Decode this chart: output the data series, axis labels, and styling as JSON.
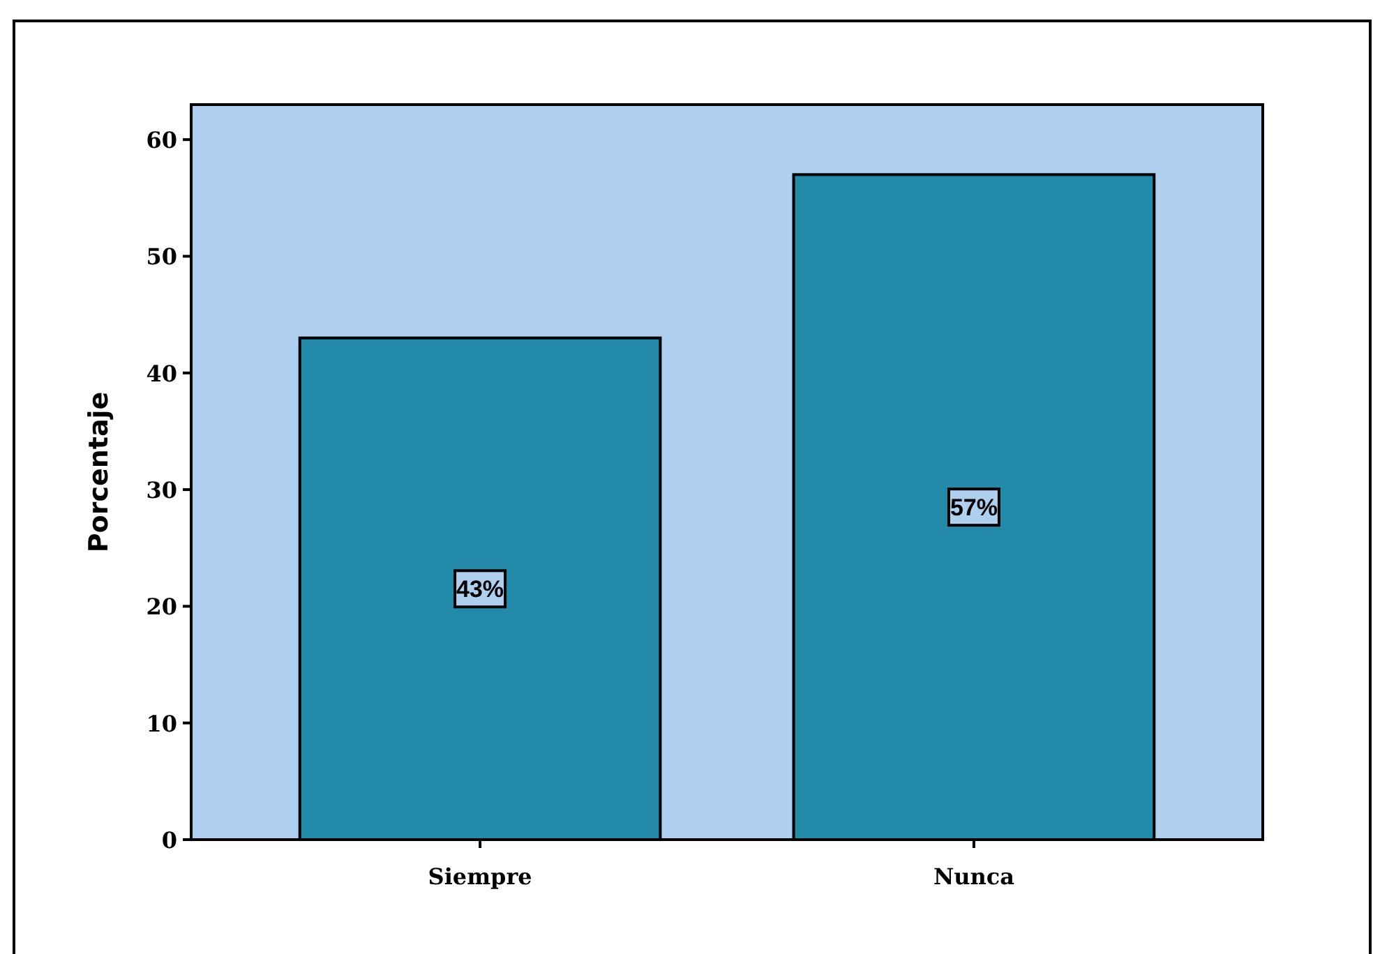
{
  "chart_data": {
    "type": "bar",
    "ylabel": "Porcentaje",
    "categories": [
      "Siempre",
      "Nunca"
    ],
    "values": [
      43,
      57
    ],
    "value_labels": [
      "43%",
      "57%"
    ],
    "color": "#238aa9",
    "ylim": [
      0,
      63
    ],
    "yticks": [
      0,
      10,
      20,
      30,
      40,
      50,
      60
    ],
    "grid": false
  }
}
